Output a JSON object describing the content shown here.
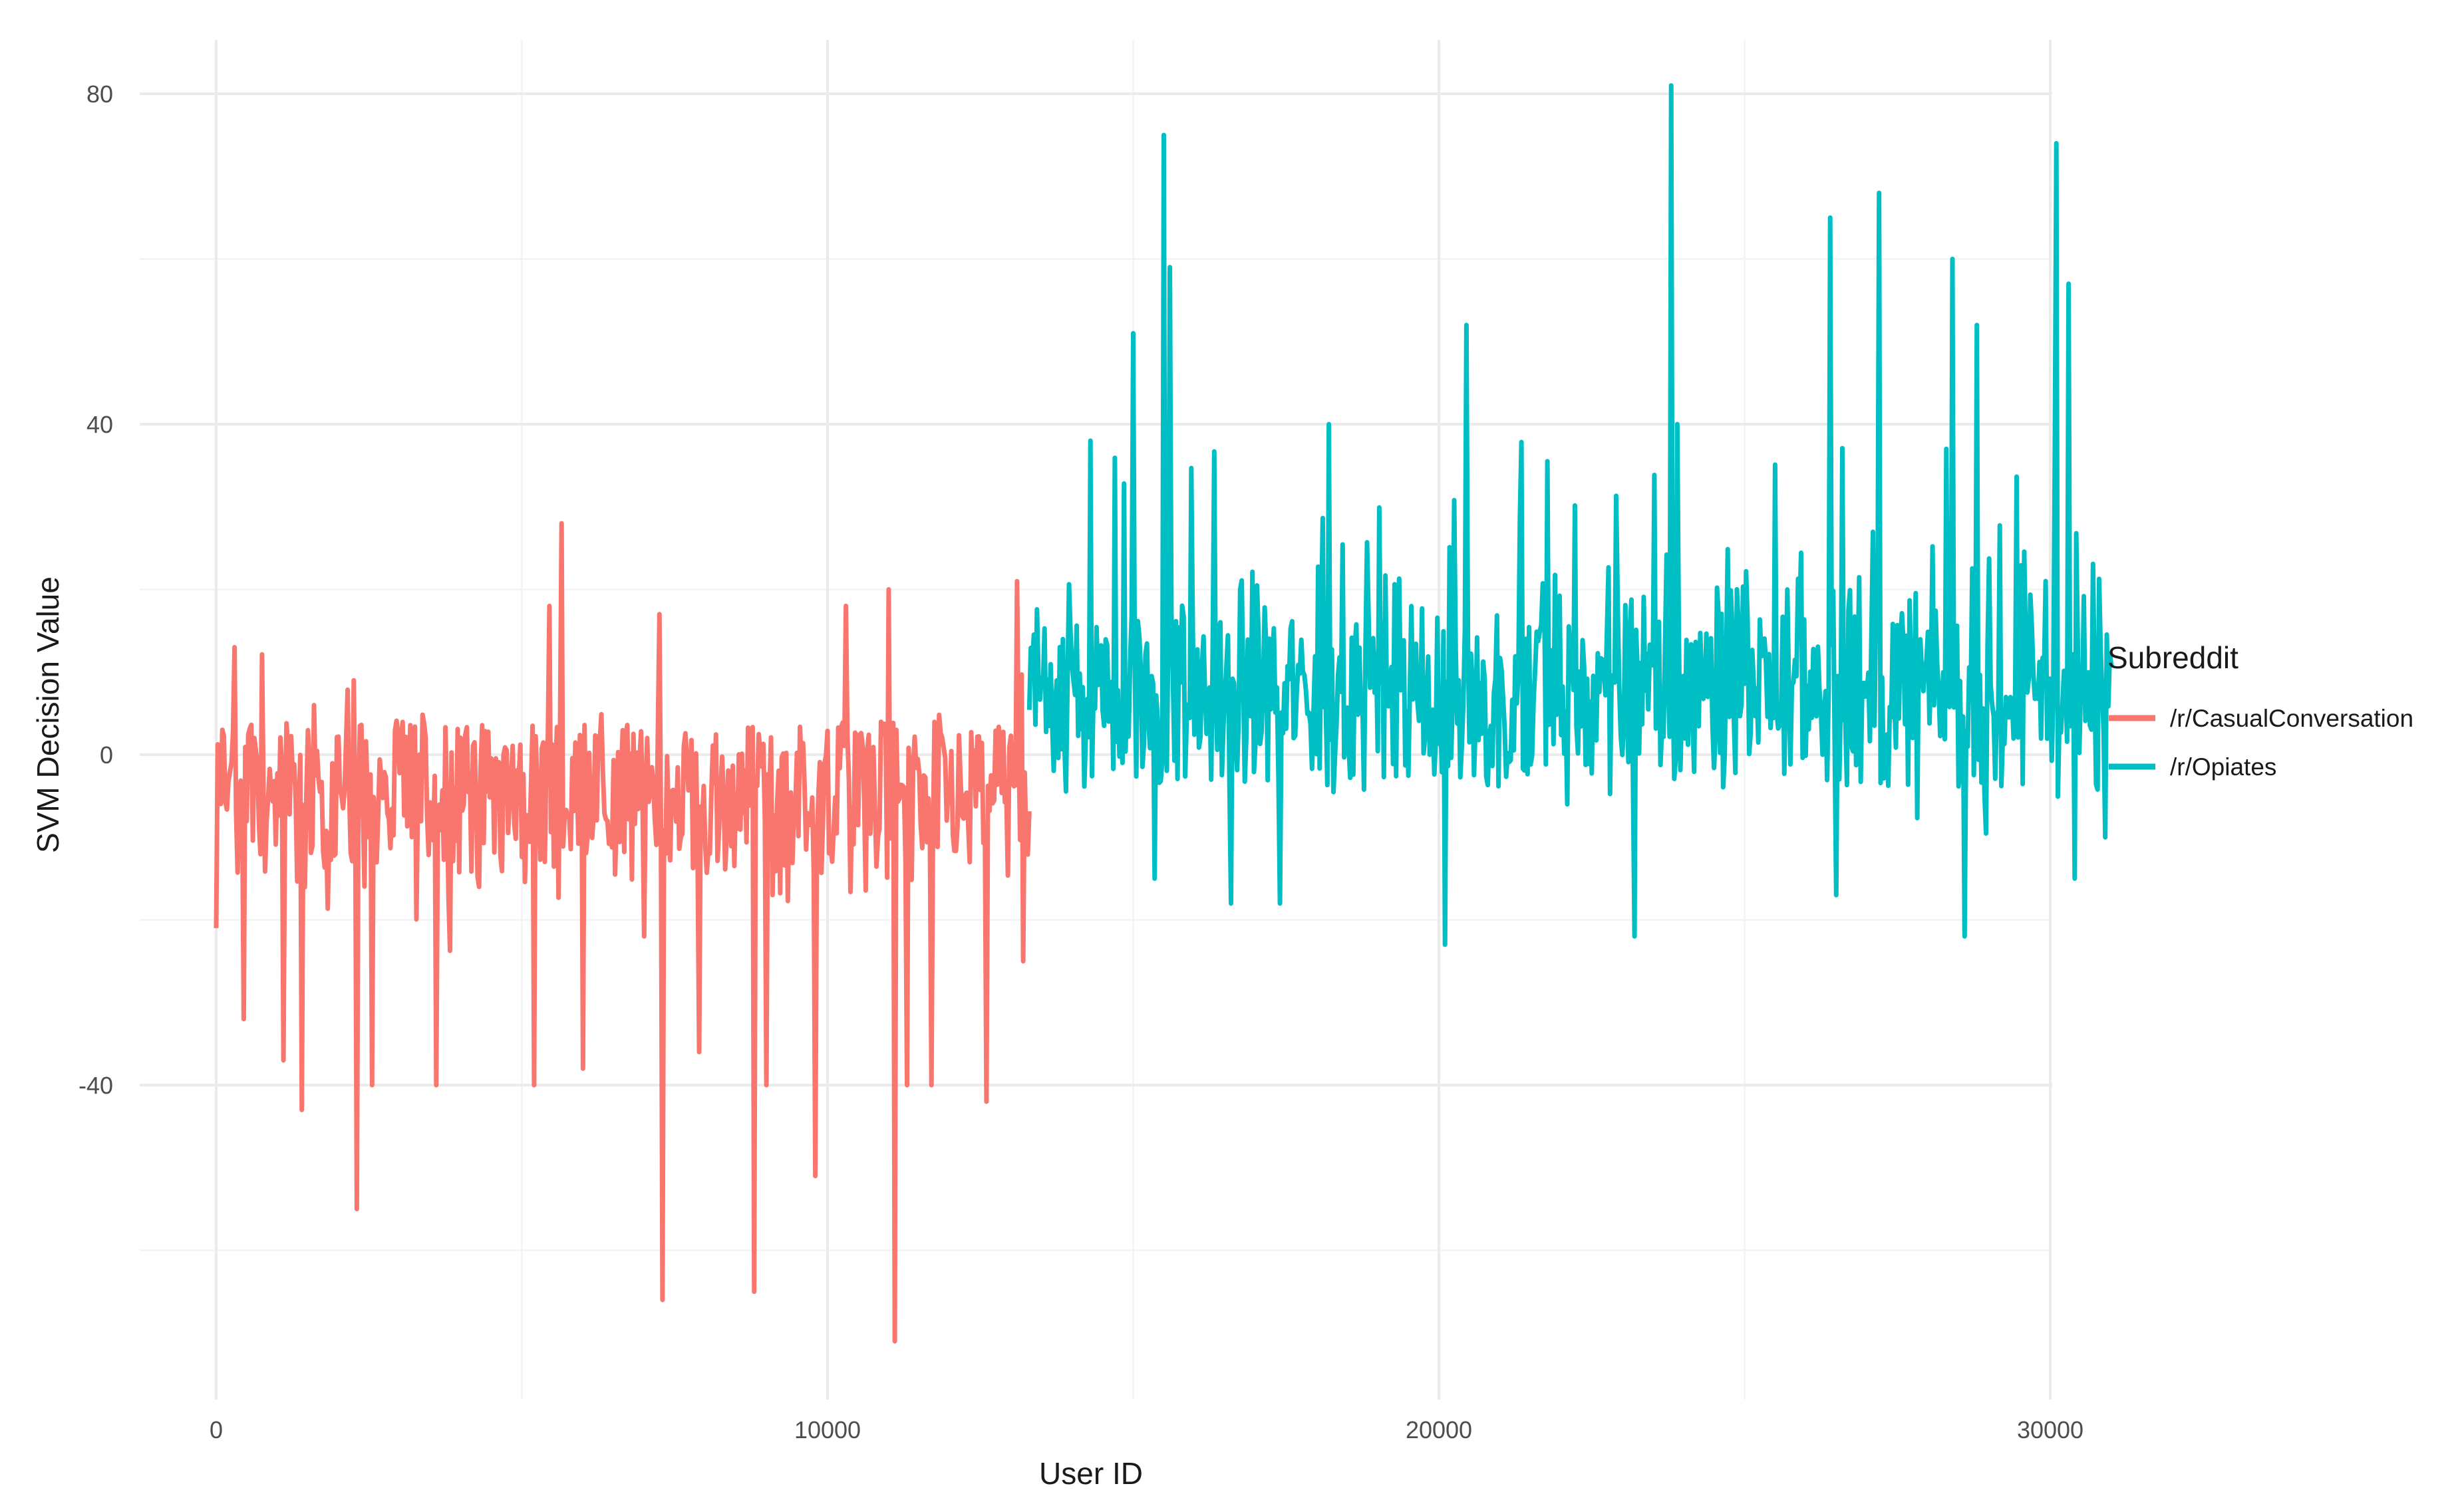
{
  "chart_data": {
    "type": "line",
    "xlabel": "User ID",
    "ylabel": "SVM Decision Value",
    "xlim": [
      -500,
      32500
    ],
    "ylim": [
      -78,
      84
    ],
    "x_ticks": [
      0,
      10000,
      20000,
      30000
    ],
    "y_ticks": [
      -40,
      0,
      40,
      80
    ],
    "x_tick_labels": [
      "0",
      "10000",
      "20000",
      "30000"
    ],
    "y_tick_labels": [
      "-40",
      "0",
      "40",
      "80"
    ],
    "grid": true,
    "legend": {
      "title": "Subreddit",
      "position": "right"
    },
    "series": [
      {
        "name": "/r/CasualConversation",
        "color": "#F8766D",
        "x_range": [
          0,
          13300
        ],
        "baseline": -5,
        "spikes": [
          {
            "x": 0,
            "y": -21
          },
          {
            "x": 100,
            "y": 3
          },
          {
            "x": 300,
            "y": 13
          },
          {
            "x": 450,
            "y": -32
          },
          {
            "x": 1100,
            "y": 14
          },
          {
            "x": 1100,
            "y": -37
          },
          {
            "x": 1400,
            "y": -43
          },
          {
            "x": 2250,
            "y": 9
          },
          {
            "x": 2300,
            "y": -55
          },
          {
            "x": 2550,
            "y": -40
          },
          {
            "x": 3600,
            "y": -40
          },
          {
            "x": 5200,
            "y": -40
          },
          {
            "x": 5450,
            "y": 18
          },
          {
            "x": 5650,
            "y": 28
          },
          {
            "x": 6000,
            "y": -38
          },
          {
            "x": 7000,
            "y": -22
          },
          {
            "x": 7250,
            "y": 17
          },
          {
            "x": 7300,
            "y": -66
          },
          {
            "x": 7900,
            "y": -36
          },
          {
            "x": 8800,
            "y": -65
          },
          {
            "x": 9000,
            "y": -40
          },
          {
            "x": 9800,
            "y": -51
          },
          {
            "x": 10300,
            "y": 18
          },
          {
            "x": 11000,
            "y": 20
          },
          {
            "x": 11100,
            "y": -71
          },
          {
            "x": 11300,
            "y": -40
          },
          {
            "x": 11700,
            "y": -40
          },
          {
            "x": 12600,
            "y": -42
          },
          {
            "x": 13100,
            "y": 21
          },
          {
            "x": 13200,
            "y": -25
          }
        ]
      },
      {
        "name": "/r/Opiates",
        "color": "#00BFC4",
        "x_range": [
          13300,
          31000
        ],
        "baseline": 7,
        "spikes": [
          {
            "x": 14300,
            "y": 38
          },
          {
            "x": 15000,
            "y": 51
          },
          {
            "x": 15350,
            "y": -15
          },
          {
            "x": 15500,
            "y": 75
          },
          {
            "x": 15600,
            "y": 59
          },
          {
            "x": 16600,
            "y": -18
          },
          {
            "x": 17400,
            "y": -18
          },
          {
            "x": 18200,
            "y": 40
          },
          {
            "x": 20100,
            "y": -23
          },
          {
            "x": 20450,
            "y": 52
          },
          {
            "x": 23200,
            "y": -22
          },
          {
            "x": 23800,
            "y": 81
          },
          {
            "x": 23900,
            "y": 40
          },
          {
            "x": 26400,
            "y": 65
          },
          {
            "x": 26500,
            "y": -17
          },
          {
            "x": 27200,
            "y": 68
          },
          {
            "x": 28400,
            "y": 60
          },
          {
            "x": 28600,
            "y": -22
          },
          {
            "x": 28800,
            "y": 52
          },
          {
            "x": 30100,
            "y": 74
          },
          {
            "x": 30300,
            "y": 57
          },
          {
            "x": 30400,
            "y": -15
          },
          {
            "x": 30900,
            "y": -10
          }
        ]
      }
    ]
  }
}
